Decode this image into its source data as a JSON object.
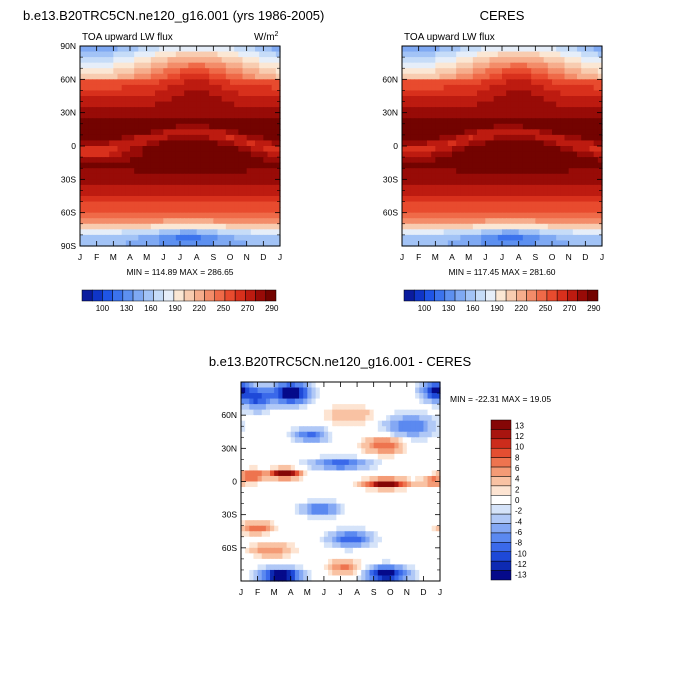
{
  "colors": {
    "abs_palette": [
      "#0a1c9e",
      "#0f35c7",
      "#1f55e6",
      "#3b73ed",
      "#5d90f0",
      "#7fa9f3",
      "#a2c3f6",
      "#c6dcf8",
      "#e6eef9",
      "#fbe7d4",
      "#f8ccb0",
      "#f6ad8c",
      "#f38c69",
      "#ef6a48",
      "#e84b2e",
      "#d8301c",
      "#bd1b10",
      "#980b07",
      "#730300"
    ],
    "diff_palette": [
      "#050a8a",
      "#0d2ab2",
      "#1e49d8",
      "#3a69ea",
      "#5b89f0",
      "#84a8f4",
      "#b0c8f6",
      "#d5e3f9",
      "#ffffff",
      "#fde4d2",
      "#f9c2a3",
      "#f49b76",
      "#ee744f",
      "#e44e31",
      "#cc2c1c",
      "#a8140f",
      "#850606"
    ]
  },
  "panels": [
    {
      "title": "b.e13.B20TRC5CN.ne120_g16.001 (yrs 1986-2005)",
      "left_label": "TOA upward LW flux",
      "units": "W/m",
      "units_sup": "2",
      "stats": "MIN = 114.89 MAX = 286.65"
    },
    {
      "title": "CERES",
      "left_label": "TOA upward LW flux",
      "units": "",
      "units_sup": "",
      "stats": "MIN = 117.45 MAX = 281.60"
    },
    {
      "title": "b.e13.B20TRC5CN.ne120_g16.001 - CERES",
      "left_label": "",
      "units": "",
      "units_sup": "",
      "stats": "MIN = -22.31 MAX =  19.05"
    }
  ],
  "chart_data": [
    {
      "type": "heatmap",
      "title": "b.e13.B20TRC5CN.ne120_g16.001 (yrs 1986-2005)",
      "variable": "TOA upward LW flux",
      "units": "W/m2",
      "x_ticks": [
        "J",
        "F",
        "M",
        "A",
        "M",
        "J",
        "J",
        "A",
        "S",
        "O",
        "N",
        "D",
        "J"
      ],
      "y_ticks": [
        "90N",
        "60N",
        "30N",
        "0",
        "30S",
        "60S",
        "90S"
      ],
      "y_values": [
        90,
        60,
        30,
        0,
        -30,
        -60,
        -90
      ],
      "colorbar_labels": [
        "100",
        "130",
        "160",
        "190",
        "220",
        "250",
        "270",
        "290"
      ],
      "min": 114.89,
      "max": 286.65
    },
    {
      "type": "heatmap",
      "title": "CERES",
      "variable": "TOA upward LW flux",
      "units": "",
      "x_ticks": [
        "J",
        "F",
        "M",
        "A",
        "M",
        "J",
        "J",
        "A",
        "S",
        "O",
        "N",
        "D",
        "J"
      ],
      "y_ticks": [
        "60N",
        "30N",
        "0",
        "30S",
        "60S"
      ],
      "y_values": [
        60,
        30,
        0,
        -30,
        -60
      ],
      "colorbar_labels": [
        "100",
        "130",
        "160",
        "190",
        "220",
        "250",
        "270",
        "290"
      ],
      "min": 117.45,
      "max": 281.6
    },
    {
      "type": "heatmap",
      "title": "b.e13.B20TRC5CN.ne120_g16.001 - CERES",
      "x_ticks": [
        "J",
        "F",
        "M",
        "A",
        "M",
        "J",
        "J",
        "A",
        "S",
        "O",
        "N",
        "D",
        "J"
      ],
      "y_ticks": [
        "60N",
        "30N",
        "0",
        "30S",
        "60S"
      ],
      "y_values": [
        60,
        30,
        0,
        -30,
        -60
      ],
      "colorbar_labels": [
        "13",
        "12",
        "10",
        "8",
        "6",
        "4",
        "2",
        "0",
        "-2",
        "-4",
        "-6",
        "-8",
        "-10",
        "-12",
        "-13"
      ],
      "min": -22.31,
      "max": 19.05
    }
  ]
}
